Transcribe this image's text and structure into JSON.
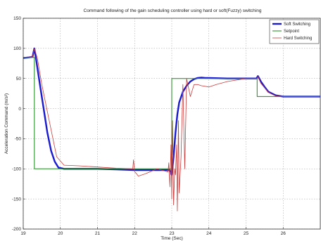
{
  "chart_data": {
    "type": "line",
    "title": "Command following of the gain scheduling controller using hard or soft(Fuzzy) switching",
    "xlabel": "Time (Sec)",
    "ylabel": "Acceleration Command (m/s²)",
    "xlim": [
      19,
      27
    ],
    "ylim": [
      -200,
      150
    ],
    "xticks": [
      "19",
      "20",
      "21",
      "22",
      "23",
      "24",
      "25",
      "26"
    ],
    "yticks": [
      "150",
      "100",
      "50",
      "0",
      "-50",
      "-100",
      "-150",
      "-200"
    ],
    "grid": true,
    "legend_position": "top-right",
    "series": [
      {
        "name": "Soft Switching",
        "color": "#1a1ad0",
        "style": "thick",
        "x": [
          19.0,
          19.15,
          19.25,
          19.3,
          19.35,
          19.45,
          19.55,
          19.65,
          19.75,
          19.85,
          19.95,
          20.1,
          20.5,
          21.0,
          21.5,
          22.0,
          22.5,
          22.95,
          23.0,
          23.05,
          23.1,
          23.15,
          23.2,
          23.3,
          23.4,
          23.5,
          23.6,
          23.7,
          23.8,
          23.9,
          24.0,
          24.5,
          25.0,
          25.28,
          25.32,
          25.4,
          25.5,
          25.6,
          25.8,
          26.0,
          26.5,
          27.0
        ],
        "y": [
          84,
          85,
          86,
          100,
          80,
          40,
          0,
          -40,
          -70,
          -88,
          -98,
          -100,
          -100,
          -100,
          -101,
          -102,
          -102,
          -102,
          -110,
          -80,
          -40,
          -10,
          10,
          28,
          38,
          45,
          49,
          51,
          51.5,
          51,
          51,
          50,
          50,
          50,
          54,
          45,
          36,
          28,
          22,
          20,
          20,
          20
        ]
      },
      {
        "name": "Setpoint",
        "color": "#1a8a1a",
        "style": "step",
        "x": [
          19.0,
          19.3,
          19.3,
          23.0,
          23.0,
          25.3,
          25.3,
          27.0
        ],
        "y": [
          85,
          85,
          -100,
          -100,
          50,
          50,
          20,
          20
        ]
      },
      {
        "name": "Hard Switching",
        "color": "#cc3b3b",
        "style": "thin",
        "x": [
          19.0,
          19.25,
          19.3,
          19.38,
          19.5,
          19.7,
          19.9,
          20.1,
          20.5,
          21.0,
          21.5,
          21.95,
          21.97,
          22.0,
          22.05,
          22.1,
          22.3,
          22.6,
          22.9,
          22.92,
          22.95,
          22.98,
          23.0,
          23.02,
          23.05,
          23.08,
          23.1,
          23.13,
          23.15,
          23.18,
          23.2,
          23.25,
          23.3,
          23.35,
          23.4,
          23.5,
          23.6,
          23.7,
          23.8,
          24.0,
          24.2,
          24.5,
          25.0,
          25.3,
          25.32,
          25.4,
          25.6,
          25.8,
          26.0,
          27.0
        ],
        "y": [
          85,
          86,
          100,
          84,
          40,
          -20,
          -80,
          -94,
          -95,
          -97,
          -99,
          -100,
          -85,
          -105,
          -108,
          -112,
          -108,
          -100,
          -105,
          -90,
          -130,
          -60,
          -150,
          -20,
          -160,
          -100,
          -110,
          -60,
          -170,
          -20,
          -140,
          -80,
          40,
          -100,
          50,
          20,
          40,
          40,
          38,
          36,
          40,
          45,
          50,
          50,
          53,
          42,
          27,
          21,
          20,
          20
        ]
      }
    ]
  }
}
